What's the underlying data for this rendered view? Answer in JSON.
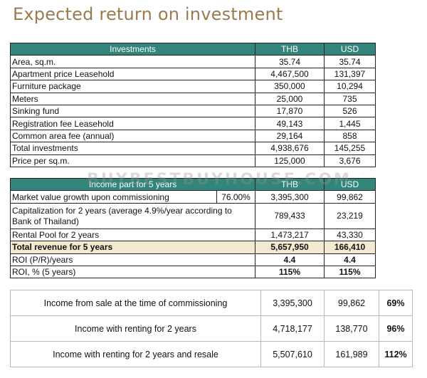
{
  "title": "Expected return on investment",
  "watermark": "BUYBESTBUYHOUSE.COM",
  "investments": {
    "headers": [
      "Investments",
      "THB",
      "USD"
    ],
    "rows": [
      {
        "label": "Area, sq.m.",
        "thb": "35.74",
        "usd": "35.74"
      },
      {
        "label": "Apartment price Leasehold",
        "thb": "4,467,500",
        "usd": "131,397"
      },
      {
        "label": "Furniture package",
        "thb": "350,000",
        "usd": "10,294"
      },
      {
        "label": "Meters",
        "thb": "25,000",
        "usd": "735"
      },
      {
        "label": "Sinking fund",
        "thb": "17,870",
        "usd": "526"
      },
      {
        "label": "Registration fee Leasehold",
        "thb": "49,143",
        "usd": "1,445"
      },
      {
        "label": "Common area fee (annual)",
        "thb": "29,164",
        "usd": "858"
      },
      {
        "label": "Total investments",
        "thb": "4,938,676",
        "usd": "145,255"
      },
      {
        "label": "Price per sq.m.",
        "thb": "125,000",
        "usd": "3,676"
      }
    ]
  },
  "income": {
    "headers": [
      "Income part for 5 years",
      "THB",
      "USD"
    ],
    "rows": [
      {
        "label": "Market value growth upon commissioning",
        "pct": "76.00%",
        "thb": "3,395,300",
        "usd": "99,862"
      },
      {
        "label": "Capitalization for 2 years (average 4.9%/year according to Bank of Thailand)",
        "thb": "789,433",
        "usd": "23,219"
      },
      {
        "label": "Rental Pool for 2 years",
        "thb": "1,473,217",
        "usd": "43,330"
      },
      {
        "label": "Total revenue for 5 years",
        "thb": "5,657,950",
        "usd": "166,410"
      },
      {
        "label": "ROI (P/R)/years",
        "thb": "4.4",
        "usd": "4.4"
      },
      {
        "label": "ROI, % (5 years)",
        "thb": "115%",
        "usd": "115%"
      }
    ]
  },
  "summary": {
    "rows": [
      {
        "label": "Income from sale at the time of commissioning",
        "thb": "3,395,300",
        "usd": "99,862",
        "pct": "69%"
      },
      {
        "label": "Income with renting for 2 years",
        "thb": "4,718,177",
        "usd": "138,770",
        "pct": "96%"
      },
      {
        "label": "Income with renting for 2 years and resale",
        "thb": "5,507,610",
        "usd": "161,989",
        "pct": "112%"
      }
    ]
  },
  "colors": {
    "header_bg": "#31857a",
    "title": "#9b7a4d",
    "highlight": "#f3e9d1"
  }
}
